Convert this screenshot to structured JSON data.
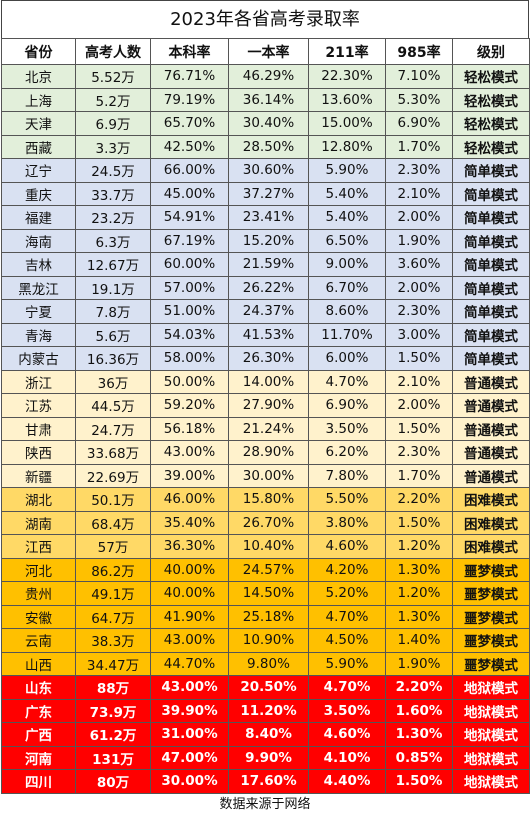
{
  "title": "2023年各省高考录取率",
  "table": {
    "header": [
      "省份",
      "高考人数",
      "本科率",
      "一本率",
      "211率",
      "985率",
      "级别"
    ],
    "rows": [
      {
        "fill": "#e2efda",
        "cells": [
          "北京",
          "5.52万",
          "76.71%",
          "46.29%",
          "22.30%",
          "7.10%",
          "轻松模式"
        ]
      },
      {
        "fill": "#e2efda",
        "cells": [
          "上海",
          "5.2万",
          "79.19%",
          "36.14%",
          "13.60%",
          "5.30%",
          "轻松模式"
        ]
      },
      {
        "fill": "#e2efda",
        "cells": [
          "天津",
          "6.9万",
          "65.70%",
          "30.40%",
          "15.00%",
          "6.90%",
          "轻松模式"
        ]
      },
      {
        "fill": "#e2efda",
        "cells": [
          "西藏",
          "3.3万",
          "42.50%",
          "28.50%",
          "12.80%",
          "1.70%",
          "轻松模式"
        ]
      },
      {
        "fill": "#d9e1f2",
        "cells": [
          "辽宁",
          "24.5万",
          "66.00%",
          "30.60%",
          "5.90%",
          "2.30%",
          "简单模式"
        ]
      },
      {
        "fill": "#d9e1f2",
        "cells": [
          "重庆",
          "33.7万",
          "45.00%",
          "37.27%",
          "5.40%",
          "2.10%",
          "简单模式"
        ]
      },
      {
        "fill": "#d9e1f2",
        "cells": [
          "福建",
          "23.2万",
          "54.91%",
          "23.41%",
          "5.40%",
          "2.00%",
          "简单模式"
        ]
      },
      {
        "fill": "#d9e1f2",
        "cells": [
          "海南",
          "6.3万",
          "67.19%",
          "15.20%",
          "6.50%",
          "1.90%",
          "简单模式"
        ]
      },
      {
        "fill": "#d9e1f2",
        "cells": [
          "吉林",
          "12.67万",
          "60.00%",
          "21.59%",
          "9.00%",
          "3.60%",
          "简单模式"
        ]
      },
      {
        "fill": "#d9e1f2",
        "cells": [
          "黑龙江",
          "19.1万",
          "57.00%",
          "26.22%",
          "6.70%",
          "2.00%",
          "简单模式"
        ]
      },
      {
        "fill": "#d9e1f2",
        "cells": [
          "宁夏",
          "7.8万",
          "51.00%",
          "24.37%",
          "8.60%",
          "2.30%",
          "简单模式"
        ]
      },
      {
        "fill": "#d9e1f2",
        "cells": [
          "青海",
          "5.6万",
          "54.03%",
          "41.53%",
          "11.70%",
          "3.00%",
          "简单模式"
        ]
      },
      {
        "fill": "#d9e1f2",
        "cells": [
          "内蒙古",
          "16.36万",
          "58.00%",
          "26.30%",
          "6.00%",
          "1.50%",
          "简单模式"
        ]
      },
      {
        "fill": "#fff2cc",
        "cells": [
          "浙江",
          "36万",
          "50.00%",
          "14.00%",
          "4.70%",
          "2.10%",
          "普通模式"
        ]
      },
      {
        "fill": "#fff2cc",
        "cells": [
          "江苏",
          "44.5万",
          "59.20%",
          "27.90%",
          "6.90%",
          "2.00%",
          "普通模式"
        ]
      },
      {
        "fill": "#fff2cc",
        "cells": [
          "甘肃",
          "24.7万",
          "56.18%",
          "21.24%",
          "3.50%",
          "1.50%",
          "普通模式"
        ]
      },
      {
        "fill": "#fff2cc",
        "cells": [
          "陕西",
          "33.68万",
          "43.00%",
          "28.90%",
          "6.20%",
          "2.30%",
          "普通模式"
        ]
      },
      {
        "fill": "#fff2cc",
        "cells": [
          "新疆",
          "22.69万",
          "39.00%",
          "30.00%",
          "7.80%",
          "1.70%",
          "普通模式"
        ]
      },
      {
        "fill": "#ffd966",
        "cells": [
          "湖北",
          "50.1万",
          "46.00%",
          "15.80%",
          "5.50%",
          "2.20%",
          "困难模式"
        ]
      },
      {
        "fill": "#ffd966",
        "cells": [
          "湖南",
          "68.4万",
          "35.40%",
          "26.70%",
          "3.80%",
          "1.50%",
          "困难模式"
        ]
      },
      {
        "fill": "#ffd966",
        "cells": [
          "江西",
          "57万",
          "36.30%",
          "10.40%",
          "4.60%",
          "1.20%",
          "困难模式"
        ]
      },
      {
        "fill": "#ffc000",
        "cells": [
          "河北",
          "86.2万",
          "40.00%",
          "24.57%",
          "4.20%",
          "1.30%",
          "噩梦模式"
        ]
      },
      {
        "fill": "#ffc000",
        "cells": [
          "贵州",
          "49.1万",
          "40.00%",
          "14.50%",
          "5.20%",
          "1.20%",
          "噩梦模式"
        ]
      },
      {
        "fill": "#ffc000",
        "cells": [
          "安徽",
          "64.7万",
          "41.90%",
          "25.18%",
          "4.70%",
          "1.30%",
          "噩梦模式"
        ]
      },
      {
        "fill": "#ffc000",
        "cells": [
          "云南",
          "38.3万",
          "43.00%",
          "10.90%",
          "4.50%",
          "1.40%",
          "噩梦模式"
        ]
      },
      {
        "fill": "#ffc000",
        "cells": [
          "山西",
          "34.47万",
          "44.70%",
          "9.80%",
          "5.90%",
          "1.90%",
          "噩梦模式"
        ]
      },
      {
        "fill": "#ff0000",
        "cells": [
          "山东",
          "88万",
          "43.00%",
          "20.50%",
          "4.70%",
          "2.20%",
          "地狱模式"
        ]
      },
      {
        "fill": "#ff0000",
        "cells": [
          "广东",
          "73.9万",
          "39.90%",
          "11.20%",
          "3.50%",
          "1.60%",
          "地狱模式"
        ]
      },
      {
        "fill": "#ff0000",
        "cells": [
          "广西",
          "61.2万",
          "31.00%",
          "8.40%",
          "4.60%",
          "1.30%",
          "地狱模式"
        ]
      },
      {
        "fill": "#ff0000",
        "cells": [
          "河南",
          "131万",
          "47.00%",
          "9.90%",
          "4.10%",
          "0.85%",
          "地狱模式"
        ]
      },
      {
        "fill": "#ff0000",
        "cells": [
          "四川",
          "80万",
          "30.00%",
          "17.60%",
          "4.40%",
          "1.50%",
          "地狱模式"
        ]
      }
    ]
  },
  "footer": "数据来源于网络"
}
